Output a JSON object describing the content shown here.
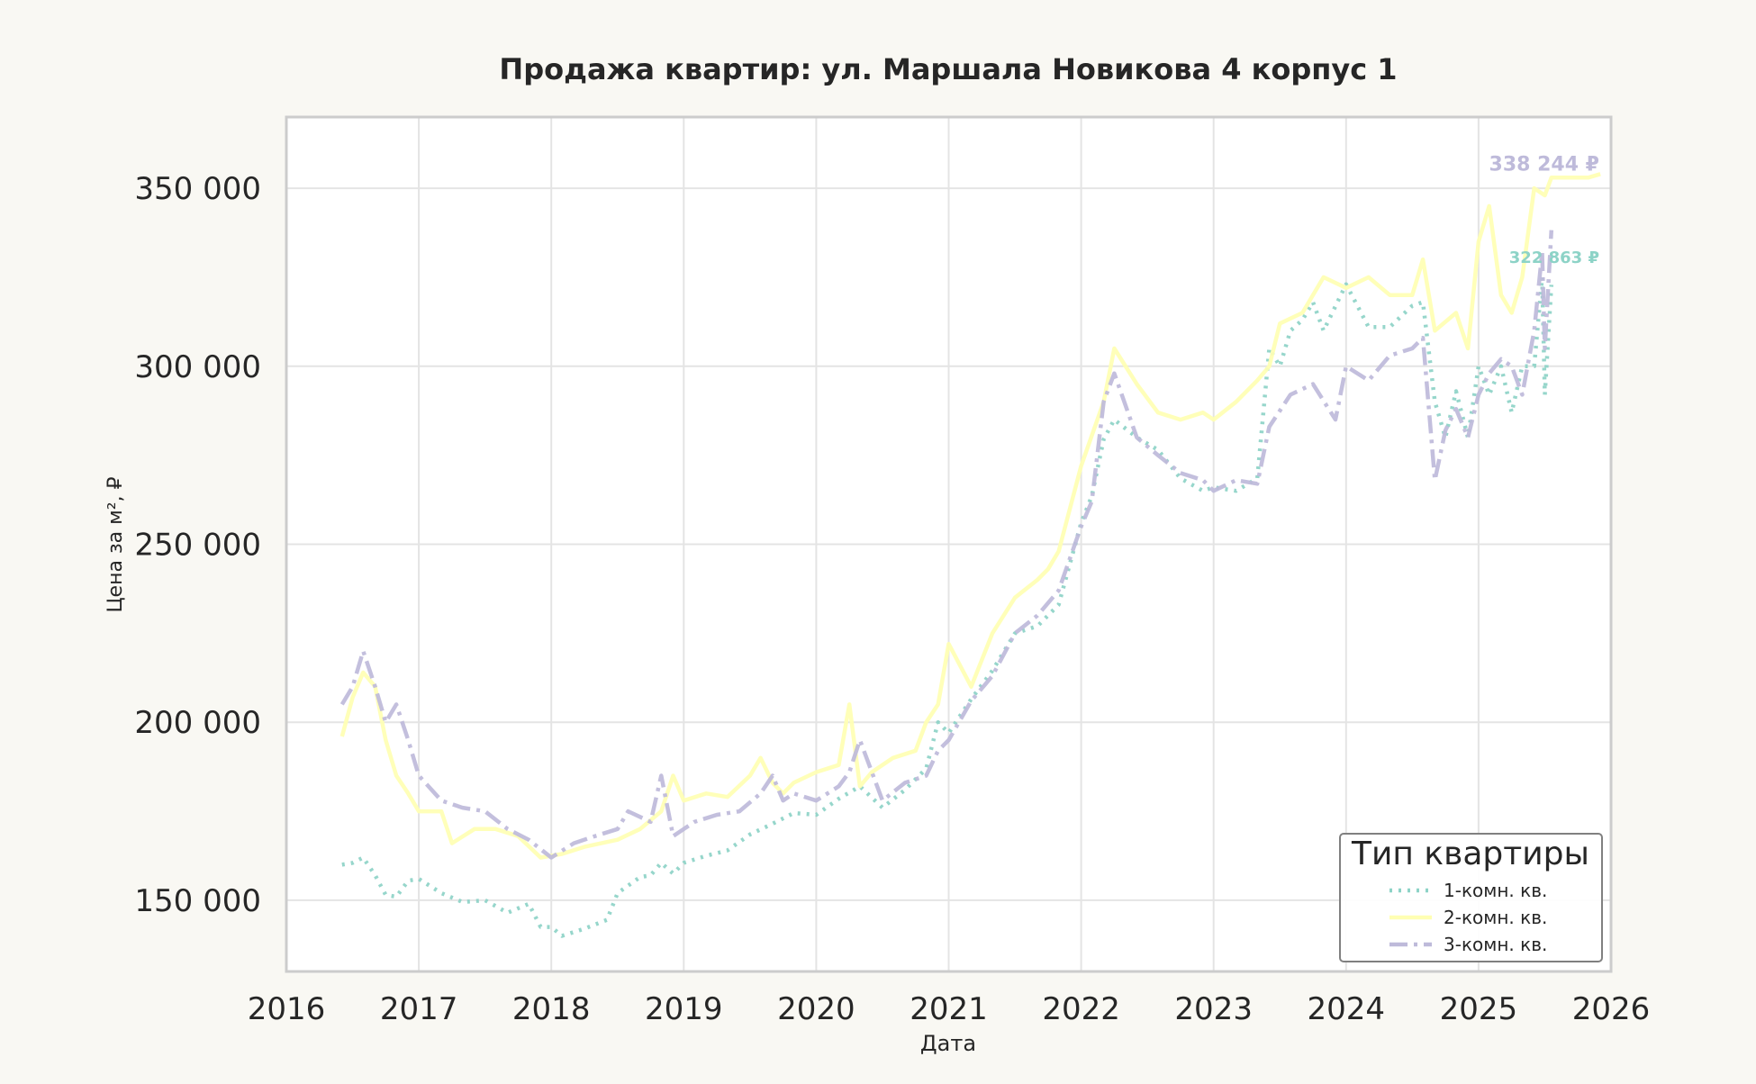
{
  "chart_data": {
    "type": "line",
    "title": "Продажа квартир: ул. Маршала Новикова 4 корпус 1",
    "xlabel": "Дата",
    "ylabel": "Цена за м², ₽",
    "xlim": [
      2016.0,
      2026.0
    ],
    "ylim": [
      130000,
      370000
    ],
    "x_ticks": [
      2016,
      2017,
      2018,
      2019,
      2020,
      2021,
      2022,
      2023,
      2024,
      2025,
      2026
    ],
    "x_tick_labels": [
      "2016",
      "2017",
      "2018",
      "2019",
      "2020",
      "2021",
      "2022",
      "2023",
      "2024",
      "2025",
      "2026"
    ],
    "y_ticks": [
      150000,
      200000,
      250000,
      300000,
      350000
    ],
    "y_tick_labels": [
      "150 000",
      "200 000",
      "250 000",
      "300 000",
      "350 000"
    ],
    "grid": true,
    "legend": {
      "title": "Тип квартиры",
      "placement": "lower-right"
    },
    "series": [
      {
        "name": "1-комн. кв.",
        "color": "#8dd3c7",
        "dash": "dotted",
        "end_label": "322 863 ₽",
        "x": [
          2016.42,
          2016.5,
          2016.58,
          2016.67,
          2016.75,
          2016.83,
          2016.92,
          2017.0,
          2017.17,
          2017.33,
          2017.5,
          2017.67,
          2017.83,
          2017.92,
          2018.0,
          2018.08,
          2018.25,
          2018.42,
          2018.5,
          2018.67,
          2018.75,
          2018.83,
          2018.92,
          2019.0,
          2019.17,
          2019.33,
          2019.5,
          2019.67,
          2019.83,
          2020.0,
          2020.17,
          2020.33,
          2020.5,
          2020.67,
          2020.83,
          2020.92,
          2021.0,
          2021.17,
          2021.33,
          2021.5,
          2021.67,
          2021.83,
          2022.0,
          2022.08,
          2022.17,
          2022.25,
          2022.42,
          2022.58,
          2022.75,
          2022.92,
          2023.0,
          2023.17,
          2023.33,
          2023.42,
          2023.5,
          2023.58,
          2023.67,
          2023.75,
          2023.83,
          2024.0,
          2024.17,
          2024.33,
          2024.5,
          2024.58,
          2024.67,
          2024.75,
          2024.83,
          2024.92,
          2025.0,
          2025.08,
          2025.17,
          2025.25,
          2025.33,
          2025.42,
          2025.48,
          2025.5,
          2025.55
        ],
        "y": [
          160000,
          160500,
          162000,
          157000,
          151500,
          151000,
          155500,
          156000,
          152000,
          149500,
          150000,
          146500,
          149000,
          142500,
          142500,
          140000,
          142000,
          144500,
          152000,
          156500,
          157000,
          160500,
          157500,
          160500,
          162500,
          164000,
          168500,
          171500,
          174500,
          174000,
          178500,
          182000,
          176000,
          181000,
          187000,
          200000,
          197000,
          206500,
          214500,
          225000,
          227000,
          233000,
          256000,
          263500,
          279500,
          285000,
          280000,
          276500,
          268500,
          265000,
          266000,
          265000,
          268500,
          305000,
          300000,
          310000,
          313000,
          318000,
          310000,
          323000,
          311000,
          311000,
          317000,
          318000,
          290000,
          280000,
          293000,
          280000,
          300000,
          292000,
          300000,
          287000,
          300000,
          300000,
          325000,
          292000,
          322863
        ]
      },
      {
        "name": "2-комн. кв.",
        "color": "#ffffb3",
        "dash": "solid",
        "end_label": "",
        "x": [
          2016.42,
          2016.5,
          2016.58,
          2016.67,
          2016.75,
          2016.83,
          2016.92,
          2017.0,
          2017.17,
          2017.25,
          2017.42,
          2017.58,
          2017.75,
          2017.92,
          2018.08,
          2018.25,
          2018.5,
          2018.67,
          2018.83,
          2018.92,
          2019.0,
          2019.17,
          2019.33,
          2019.5,
          2019.58,
          2019.67,
          2019.75,
          2019.83,
          2020.0,
          2020.17,
          2020.25,
          2020.33,
          2020.42,
          2020.58,
          2020.75,
          2020.83,
          2020.92,
          2021.0,
          2021.17,
          2021.33,
          2021.5,
          2021.67,
          2021.75,
          2021.83,
          2022.0,
          2022.17,
          2022.25,
          2022.42,
          2022.58,
          2022.75,
          2022.92,
          2023.0,
          2023.17,
          2023.33,
          2023.42,
          2023.5,
          2023.67,
          2023.83,
          2024.0,
          2024.17,
          2024.33,
          2024.5,
          2024.58,
          2024.67,
          2024.83,
          2024.92,
          2025.0,
          2025.08,
          2025.17,
          2025.25,
          2025.33,
          2025.42,
          2025.5,
          2025.55,
          2025.67,
          2025.83,
          2025.92
        ],
        "y": [
          196000,
          207000,
          214000,
          210000,
          195000,
          185000,
          180000,
          175000,
          175000,
          166000,
          170000,
          170000,
          168000,
          162000,
          163000,
          165000,
          167000,
          170000,
          175000,
          185000,
          178000,
          180000,
          179000,
          185000,
          190000,
          183000,
          180000,
          183000,
          186000,
          188000,
          205000,
          182000,
          186000,
          190000,
          192000,
          200000,
          205000,
          222000,
          210000,
          225000,
          235000,
          240000,
          243000,
          248000,
          272000,
          290000,
          305000,
          295000,
          287000,
          285000,
          287000,
          285000,
          290000,
          296000,
          300000,
          312000,
          315000,
          325000,
          322000,
          325000,
          320000,
          320000,
          330000,
          310000,
          315000,
          305000,
          335000,
          345000,
          320000,
          315000,
          325000,
          350000,
          348000,
          353000,
          353000,
          353000,
          354000
        ]
      },
      {
        "name": "3-комн. кв.",
        "color": "#bebada",
        "dash": "dashdot",
        "end_label": "338 244 ₽",
        "x": [
          2016.42,
          2016.5,
          2016.58,
          2016.67,
          2016.75,
          2016.83,
          2016.92,
          2017.0,
          2017.17,
          2017.33,
          2017.5,
          2017.67,
          2017.83,
          2018.0,
          2018.17,
          2018.33,
          2018.5,
          2018.58,
          2018.75,
          2018.83,
          2018.92,
          2019.08,
          2019.25,
          2019.42,
          2019.58,
          2019.67,
          2019.75,
          2019.83,
          2020.0,
          2020.17,
          2020.25,
          2020.33,
          2020.5,
          2020.67,
          2020.83,
          2020.92,
          2021.0,
          2021.17,
          2021.33,
          2021.5,
          2021.67,
          2021.83,
          2022.0,
          2022.08,
          2022.17,
          2022.25,
          2022.42,
          2022.58,
          2022.75,
          2022.92,
          2023.0,
          2023.17,
          2023.33,
          2023.42,
          2023.58,
          2023.75,
          2023.92,
          2024.0,
          2024.17,
          2024.33,
          2024.5,
          2024.58,
          2024.67,
          2024.75,
          2024.83,
          2024.92,
          2025.0,
          2025.08,
          2025.17,
          2025.25,
          2025.33,
          2025.42,
          2025.48,
          2025.5,
          2025.55
        ],
        "y": [
          205000,
          210000,
          220000,
          210000,
          200000,
          205000,
          195000,
          185000,
          178000,
          176000,
          175000,
          170000,
          167000,
          162000,
          166000,
          168000,
          170000,
          175000,
          172000,
          185000,
          168000,
          172000,
          174000,
          175000,
          180000,
          185000,
          178000,
          180000,
          178000,
          182000,
          186000,
          195000,
          178000,
          183000,
          185000,
          192000,
          195000,
          206000,
          213000,
          225000,
          230000,
          237000,
          255000,
          262000,
          290000,
          298000,
          280000,
          275000,
          270000,
          268000,
          265000,
          268000,
          267000,
          283000,
          292000,
          295000,
          285000,
          300000,
          296000,
          303000,
          305000,
          308000,
          268000,
          282000,
          288000,
          280000,
          292000,
          298000,
          302000,
          300000,
          292000,
          310000,
          332000,
          305000,
          338244
        ]
      }
    ]
  }
}
